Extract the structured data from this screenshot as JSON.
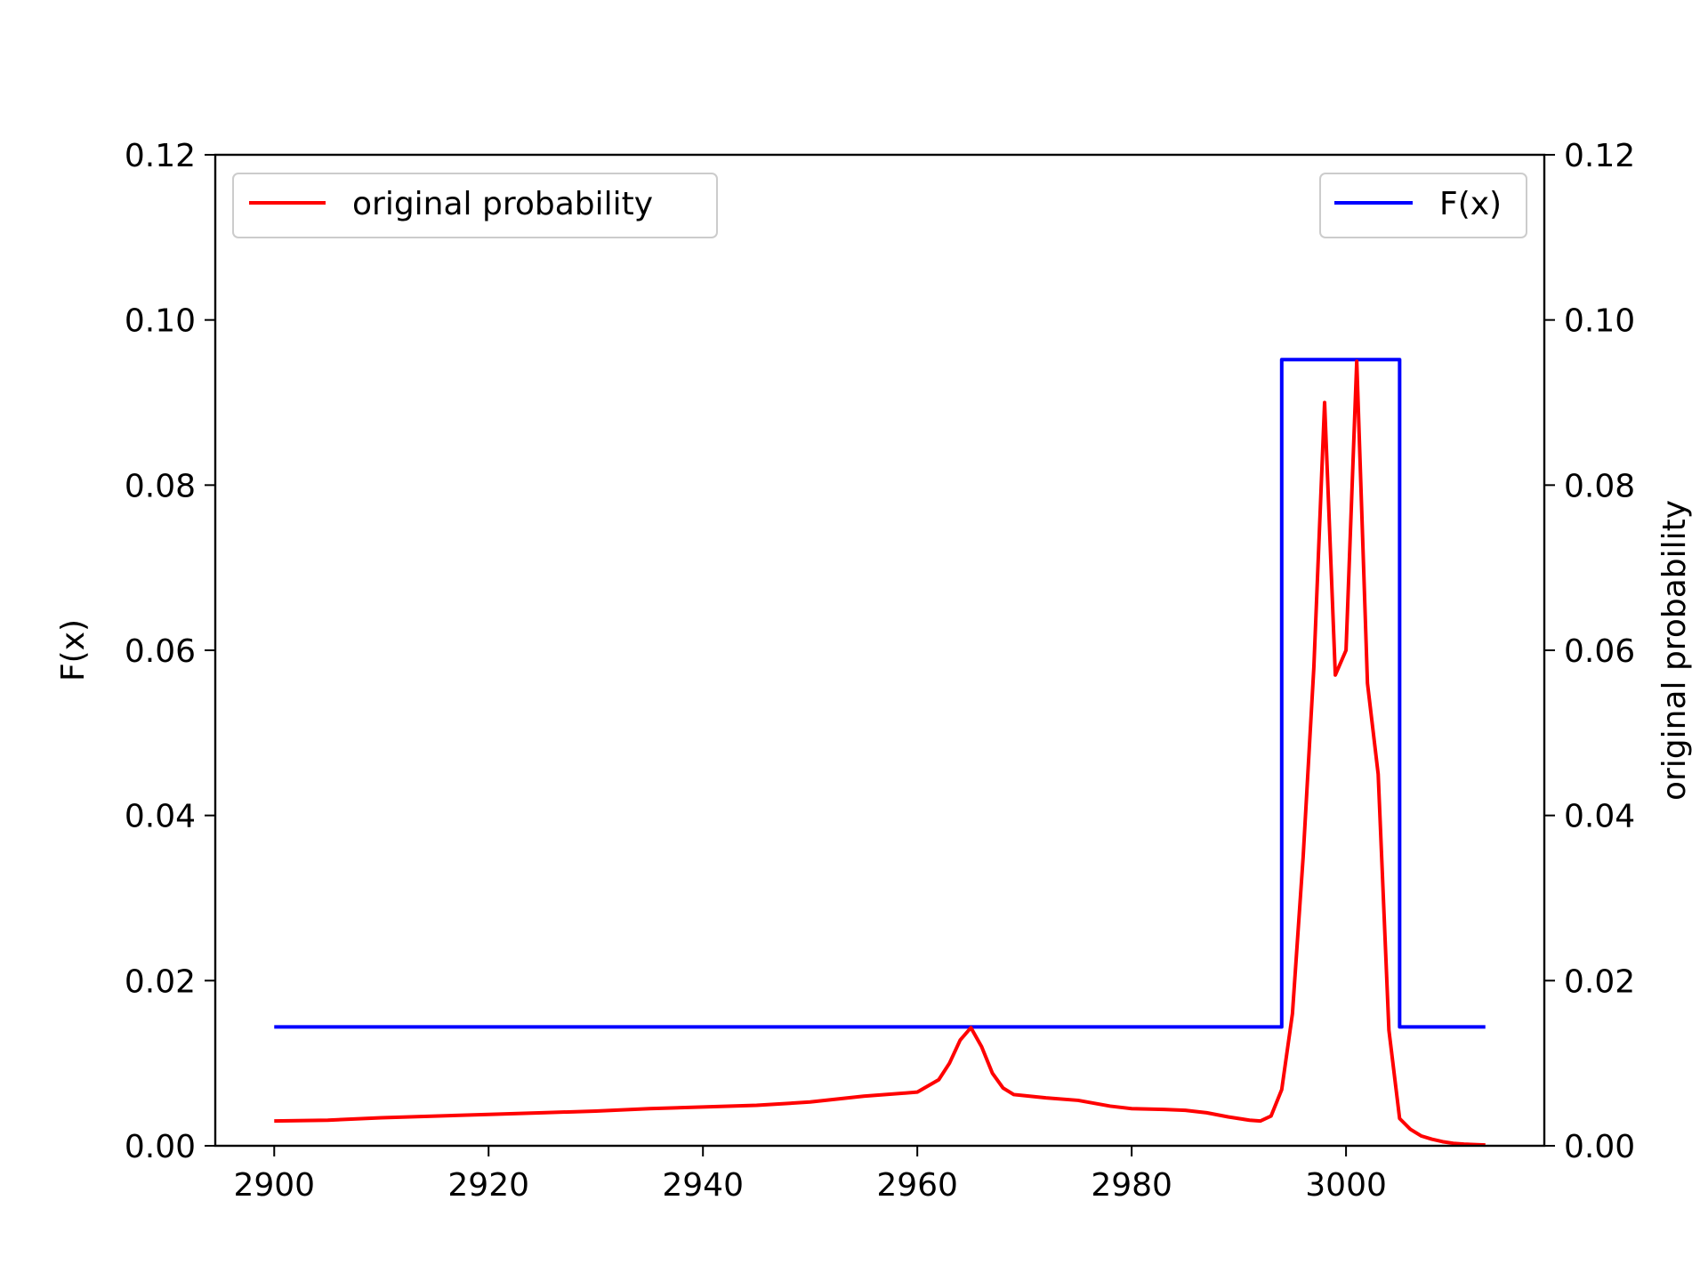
{
  "chart_data": {
    "type": "line",
    "title": "",
    "xlabel": "",
    "ylabel_left": "F(x)",
    "ylabel_right": "original probability",
    "xlim": [
      2894.5,
      3018.5
    ],
    "ylim_left": [
      0,
      0.12
    ],
    "ylim_right": [
      0,
      0.12
    ],
    "x_ticks": [
      "2900",
      "2920",
      "2940",
      "2960",
      "2980",
      "3000"
    ],
    "y_ticks_left": [
      "0.00",
      "0.02",
      "0.04",
      "0.06",
      "0.08",
      "0.10",
      "0.12"
    ],
    "y_ticks_right": [
      "0.00",
      "0.02",
      "0.04",
      "0.06",
      "0.08",
      "0.10",
      "0.12"
    ],
    "grid": false,
    "series": [
      {
        "name": "F(x)",
        "axis": "left",
        "color": "#0000ff",
        "step": true,
        "x": [
          2900,
          2994,
          2994,
          3005,
          3005,
          3013
        ],
        "y": [
          0.0144,
          0.0144,
          0.0952,
          0.0952,
          0.0144,
          0.0144
        ]
      },
      {
        "name": "original probability",
        "axis": "right",
        "color": "#ff0000",
        "x": [
          2900,
          2905,
          2910,
          2915,
          2920,
          2925,
          2930,
          2935,
          2940,
          2945,
          2950,
          2955,
          2960,
          2962,
          2963,
          2964,
          2965,
          2966,
          2967,
          2968,
          2969,
          2972,
          2975,
          2978,
          2980,
          2983,
          2985,
          2987,
          2989,
          2990,
          2991,
          2992,
          2993,
          2994,
          2995,
          2996,
          2997,
          2998,
          2999,
          3000,
          3001,
          3002,
          3003,
          3004,
          3005,
          3006,
          3007,
          3008,
          3009,
          3010,
          3011,
          3013
        ],
        "y": [
          0.003,
          0.0031,
          0.0034,
          0.0036,
          0.0038,
          0.004,
          0.0042,
          0.0045,
          0.0047,
          0.0049,
          0.0053,
          0.006,
          0.0065,
          0.008,
          0.01,
          0.0128,
          0.0143,
          0.012,
          0.0088,
          0.007,
          0.0062,
          0.0058,
          0.0055,
          0.0048,
          0.0045,
          0.0044,
          0.0043,
          0.004,
          0.0035,
          0.0033,
          0.0031,
          0.003,
          0.0036,
          0.0068,
          0.016,
          0.035,
          0.058,
          0.09,
          0.057,
          0.06,
          0.095,
          0.056,
          0.045,
          0.014,
          0.0033,
          0.002,
          0.0012,
          0.0008,
          0.0005,
          0.0003,
          0.0002,
          0.0001
        ]
      }
    ],
    "legends": [
      {
        "label": "original probability",
        "color": "#ff0000",
        "position": "upper left"
      },
      {
        "label": "F(x)",
        "color": "#0000ff",
        "position": "upper right"
      }
    ]
  }
}
